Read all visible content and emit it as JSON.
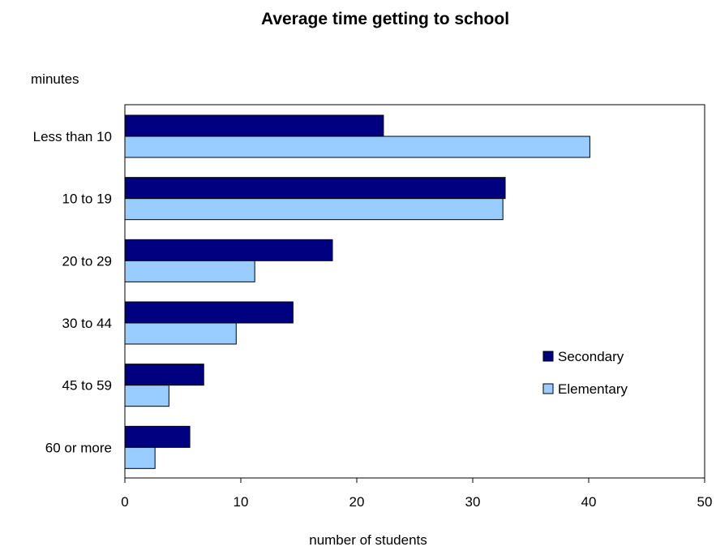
{
  "chart_data": {
    "type": "bar",
    "orientation": "horizontal",
    "title": "Average time getting to school",
    "ylabel": "minutes",
    "xlabel": "number of students",
    "categories": [
      "Less than 10",
      "10 to 19",
      "20 to 29",
      "30 to 44",
      "45 to 59",
      "60 or more"
    ],
    "series": [
      {
        "name": "Secondary",
        "color": "#000080",
        "values": [
          22.3,
          32.8,
          17.9,
          14.5,
          6.8,
          5.6
        ]
      },
      {
        "name": "Elementary",
        "color": "#99ccff",
        "values": [
          40.1,
          32.6,
          11.2,
          9.6,
          3.8,
          2.6
        ]
      }
    ],
    "xlim": [
      0,
      50
    ],
    "xticks": [
      "0",
      "10",
      "20",
      "30",
      "40",
      "50"
    ],
    "grid": false,
    "legend_position": "right"
  }
}
